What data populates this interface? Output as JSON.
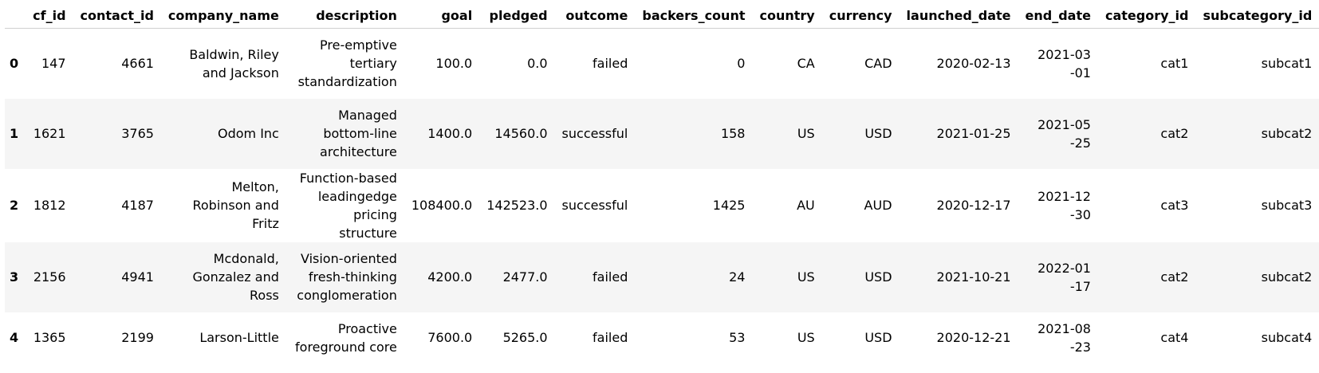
{
  "table": {
    "columns": [
      "",
      "cf_id",
      "contact_id",
      "company_name",
      "description",
      "goal",
      "pledged",
      "outcome",
      "backers_count",
      "country",
      "currency",
      "launched_date",
      "end_date",
      "category_id",
      "subcategory_id"
    ],
    "rows": [
      {
        "index": "0",
        "cf_id": "147",
        "contact_id": "4661",
        "company_name": "Baldwin, Riley and Jackson",
        "description": "Pre-emptive tertiary standardization",
        "goal": "100.0",
        "pledged": "0.0",
        "outcome": "failed",
        "backers_count": "0",
        "country": "CA",
        "currency": "CAD",
        "launched_date": "2020-02-13",
        "end_date": "2021-03-01",
        "category_id": "cat1",
        "subcategory_id": "subcat1"
      },
      {
        "index": "1",
        "cf_id": "1621",
        "contact_id": "3765",
        "company_name": "Odom Inc",
        "description": "Managed bottom-line architecture",
        "goal": "1400.0",
        "pledged": "14560.0",
        "outcome": "successful",
        "backers_count": "158",
        "country": "US",
        "currency": "USD",
        "launched_date": "2021-01-25",
        "end_date": "2021-05-25",
        "category_id": "cat2",
        "subcategory_id": "subcat2"
      },
      {
        "index": "2",
        "cf_id": "1812",
        "contact_id": "4187",
        "company_name": "Melton, Robinson and Fritz",
        "description": "Function-based leadingedge pricing structure",
        "goal": "108400.0",
        "pledged": "142523.0",
        "outcome": "successful",
        "backers_count": "1425",
        "country": "AU",
        "currency": "AUD",
        "launched_date": "2020-12-17",
        "end_date": "2021-12-30",
        "category_id": "cat3",
        "subcategory_id": "subcat3"
      },
      {
        "index": "3",
        "cf_id": "2156",
        "contact_id": "4941",
        "company_name": "Mcdonald, Gonzalez and Ross",
        "description": "Vision-oriented fresh-thinking conglomeration",
        "goal": "4200.0",
        "pledged": "2477.0",
        "outcome": "failed",
        "backers_count": "24",
        "country": "US",
        "currency": "USD",
        "launched_date": "2021-10-21",
        "end_date": "2022-01-17",
        "category_id": "cat2",
        "subcategory_id": "subcat2"
      },
      {
        "index": "4",
        "cf_id": "1365",
        "contact_id": "2199",
        "company_name": "Larson-Little",
        "description": "Proactive foreground core",
        "goal": "7600.0",
        "pledged": "5265.0",
        "outcome": "failed",
        "backers_count": "53",
        "country": "US",
        "currency": "USD",
        "launched_date": "2020-12-21",
        "end_date": "2021-08-23",
        "category_id": "cat4",
        "subcategory_id": "subcat4"
      }
    ]
  }
}
